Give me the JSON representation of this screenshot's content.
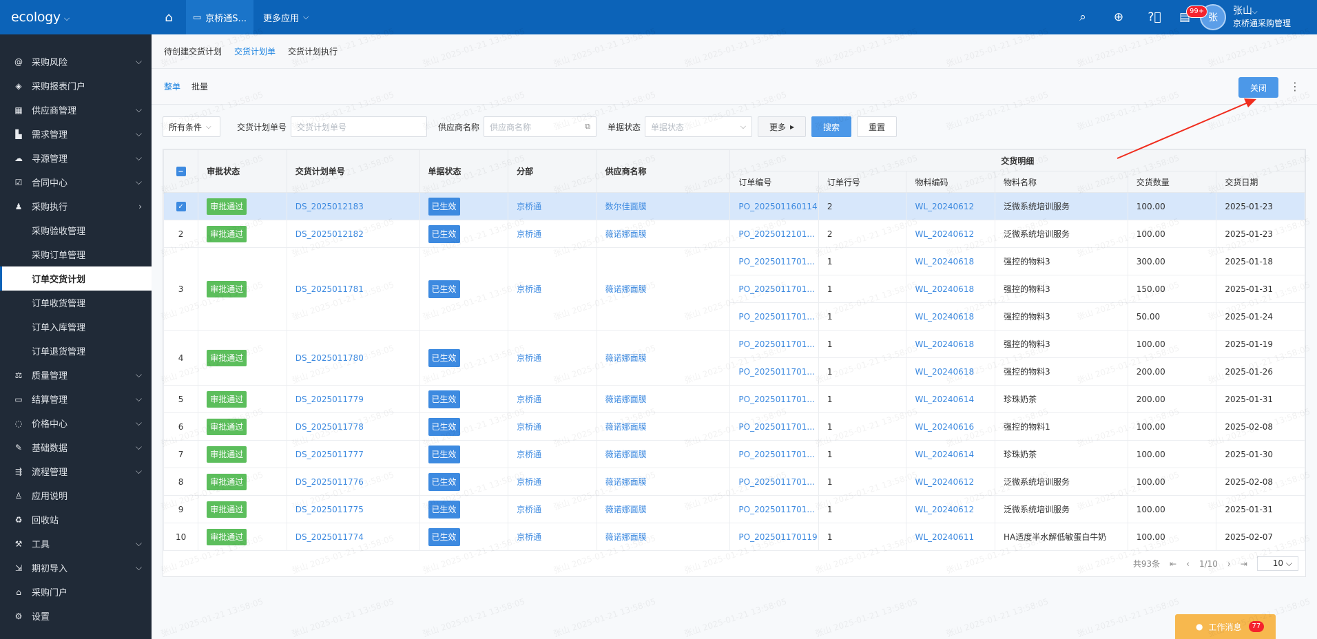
{
  "topbar": {
    "logo": "ecology",
    "active_tab": "京桥通S...",
    "more_apps": "更多应用",
    "notifications_badge": "99+",
    "avatar_text": "张",
    "user_name": "张山",
    "user_role": "京桥通采购管理"
  },
  "sidebar": {
    "items": [
      {
        "label": "采购风险",
        "icon": "at-icon",
        "arrow": "chevron-down"
      },
      {
        "label": "采购报表门户",
        "icon": "layers-icon",
        "arrow": ""
      },
      {
        "label": "供应商管理",
        "icon": "grid-icon",
        "arrow": "chevron-down"
      },
      {
        "label": "需求管理",
        "icon": "bar-chart-icon",
        "arrow": "chevron-down"
      },
      {
        "label": "寻源管理",
        "icon": "cloud-icon",
        "arrow": "chevron-down"
      },
      {
        "label": "合同中心",
        "icon": "checkbox-icon",
        "arrow": "chevron-down"
      },
      {
        "label": "采购执行",
        "icon": "users-icon",
        "arrow": "chevron-right"
      }
    ],
    "sub_items": [
      "采购验收管理",
      "采购订单管理",
      "订单交货计划",
      "订单收货管理",
      "订单入库管理",
      "订单退货管理"
    ],
    "active_sub": "订单交货计划",
    "items_after": [
      {
        "label": "质量管理",
        "icon": "scale-icon",
        "arrow": "chevron-down"
      },
      {
        "label": "结算管理",
        "icon": "monitor-icon",
        "arrow": "chevron-down"
      },
      {
        "label": "价格中心",
        "icon": "chat-icon",
        "arrow": "chevron-down"
      },
      {
        "label": "基础数据",
        "icon": "document-edit-icon",
        "arrow": "chevron-down"
      },
      {
        "label": "流程管理",
        "icon": "flow-icon",
        "arrow": "chevron-down"
      },
      {
        "label": "应用说明",
        "icon": "person-icon",
        "arrow": ""
      },
      {
        "label": "回收站",
        "icon": "recycle-icon",
        "arrow": ""
      },
      {
        "label": "工具",
        "icon": "toolbox-icon",
        "arrow": "chevron-down"
      },
      {
        "label": "期初导入",
        "icon": "import-icon",
        "arrow": "chevron-down"
      },
      {
        "label": "采购门户",
        "icon": "portal-icon",
        "arrow": ""
      },
      {
        "label": "设置",
        "icon": "gear-icon",
        "arrow": ""
      }
    ]
  },
  "tabs1": {
    "items": [
      "待创建交货计划",
      "交货计划单",
      "交货计划执行"
    ],
    "active": "交货计划单"
  },
  "tabs2": {
    "items": [
      "整单",
      "批量"
    ],
    "active": "整单",
    "close_label": "关闭"
  },
  "filter": {
    "condition": "所有条件",
    "plan_no_label": "交货计划单号",
    "plan_no_placeholder": "交货计划单号",
    "supplier_label": "供应商名称",
    "supplier_placeholder": "供应商名称",
    "status_label": "单据状态",
    "status_placeholder": "单据状态",
    "more_label": "更多",
    "search_label": "搜索",
    "reset_label": "重置"
  },
  "table": {
    "headers": {
      "approval": "审批状态",
      "plan_no": "交货计划单号",
      "doc_status": "单据状态",
      "dept": "分部",
      "supplier": "供应商名称",
      "group": "交货明细",
      "order_no": "订单编号",
      "order_line": "订单行号",
      "material_code": "物料编码",
      "material_name": "物料名称",
      "qty": "交货数量",
      "date": "交货日期"
    },
    "rows": [
      {
        "idx": "",
        "approval": "审批通过",
        "plan_no": "DS_2025012183",
        "doc_status": "已生效",
        "dept": "京桥通",
        "supplier": "数尔佳面膜",
        "selected": true,
        "details": [
          {
            "order_no": "PO_202501160114",
            "line": "2",
            "code": "WL_20240612",
            "name": "泛微系统培训服务",
            "qty": "100.00",
            "date": "2025-01-23"
          }
        ]
      },
      {
        "idx": "2",
        "approval": "审批通过",
        "plan_no": "DS_2025012182",
        "doc_status": "已生效",
        "dept": "京桥通",
        "supplier": "薇诺娜面膜",
        "details": [
          {
            "order_no": "PO_2025012101...",
            "line": "2",
            "code": "WL_20240612",
            "name": "泛微系统培训服务",
            "qty": "100.00",
            "date": "2025-01-23"
          }
        ]
      },
      {
        "idx": "3",
        "approval": "审批通过",
        "plan_no": "DS_2025011781",
        "doc_status": "已生效",
        "dept": "京桥通",
        "supplier": "薇诺娜面膜",
        "details": [
          {
            "order_no": "PO_2025011701...",
            "line": "1",
            "code": "WL_20240618",
            "name": "强控的物料3",
            "qty": "300.00",
            "date": "2025-01-18"
          },
          {
            "order_no": "PO_2025011701...",
            "line": "1",
            "code": "WL_20240618",
            "name": "强控的物料3",
            "qty": "150.00",
            "date": "2025-01-31"
          },
          {
            "order_no": "PO_2025011701...",
            "line": "1",
            "code": "WL_20240618",
            "name": "强控的物料3",
            "qty": "50.00",
            "date": "2025-01-24"
          }
        ]
      },
      {
        "idx": "4",
        "approval": "审批通过",
        "plan_no": "DS_2025011780",
        "doc_status": "已生效",
        "dept": "京桥通",
        "supplier": "薇诺娜面膜",
        "details": [
          {
            "order_no": "PO_2025011701...",
            "line": "1",
            "code": "WL_20240618",
            "name": "强控的物料3",
            "qty": "100.00",
            "date": "2025-01-19"
          },
          {
            "order_no": "PO_2025011701...",
            "line": "1",
            "code": "WL_20240618",
            "name": "强控的物料3",
            "qty": "200.00",
            "date": "2025-01-26"
          }
        ]
      },
      {
        "idx": "5",
        "approval": "审批通过",
        "plan_no": "DS_2025011779",
        "doc_status": "已生效",
        "dept": "京桥通",
        "supplier": "薇诺娜面膜",
        "details": [
          {
            "order_no": "PO_2025011701...",
            "line": "1",
            "code": "WL_20240614",
            "name": "珍珠奶茶",
            "qty": "200.00",
            "date": "2025-01-31"
          }
        ]
      },
      {
        "idx": "6",
        "approval": "审批通过",
        "plan_no": "DS_2025011778",
        "doc_status": "已生效",
        "dept": "京桥通",
        "supplier": "薇诺娜面膜",
        "details": [
          {
            "order_no": "PO_2025011701...",
            "line": "1",
            "code": "WL_20240616",
            "name": "强控的物料1",
            "qty": "100.00",
            "date": "2025-02-08"
          }
        ]
      },
      {
        "idx": "7",
        "approval": "审批通过",
        "plan_no": "DS_2025011777",
        "doc_status": "已生效",
        "dept": "京桥通",
        "supplier": "薇诺娜面膜",
        "details": [
          {
            "order_no": "PO_2025011701...",
            "line": "1",
            "code": "WL_20240614",
            "name": "珍珠奶茶",
            "qty": "100.00",
            "date": "2025-01-30"
          }
        ]
      },
      {
        "idx": "8",
        "approval": "审批通过",
        "plan_no": "DS_2025011776",
        "doc_status": "已生效",
        "dept": "京桥通",
        "supplier": "薇诺娜面膜",
        "details": [
          {
            "order_no": "PO_2025011701...",
            "line": "1",
            "code": "WL_20240612",
            "name": "泛微系统培训服务",
            "qty": "100.00",
            "date": "2025-02-08"
          }
        ]
      },
      {
        "idx": "9",
        "approval": "审批通过",
        "plan_no": "DS_2025011775",
        "doc_status": "已生效",
        "dept": "京桥通",
        "supplier": "薇诺娜面膜",
        "details": [
          {
            "order_no": "PO_2025011701...",
            "line": "1",
            "code": "WL_20240612",
            "name": "泛微系统培训服务",
            "qty": "100.00",
            "date": "2025-01-31"
          }
        ]
      },
      {
        "idx": "10",
        "approval": "审批通过",
        "plan_no": "DS_2025011774",
        "doc_status": "已生效",
        "dept": "京桥通",
        "supplier": "薇诺娜面膜",
        "details": [
          {
            "order_no": "PO_202501170119",
            "line": "1",
            "code": "WL_20240611",
            "name": "HA适度半水解低敏蛋白牛奶",
            "qty": "100.00",
            "date": "2025-02-07"
          }
        ]
      }
    ]
  },
  "pager": {
    "total": "共93条",
    "page": "1/10",
    "page_size": "10"
  },
  "message": {
    "label": "工作消息",
    "count": "77"
  },
  "watermark": {
    "name": "张山",
    "time": "2025-01-21 13:58:05"
  },
  "colors": {
    "topbar": "#0c63b8",
    "sidebar": "#202a37",
    "accent": "#3d8ae0",
    "success": "#5cbe5c",
    "arrow": "#f02d1e"
  }
}
